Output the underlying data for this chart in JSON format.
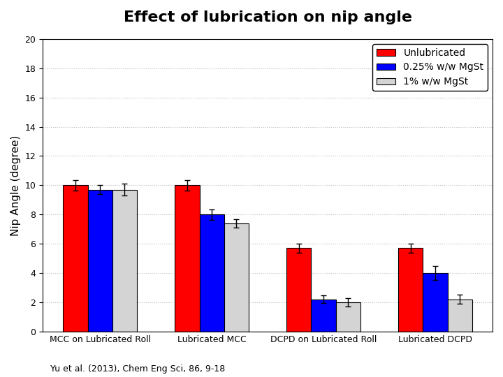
{
  "title": "Effect of lubrication on nip angle",
  "ylabel": "Nip Angle (degree)",
  "citation": "Yu et al. (2013), Chem Eng Sci, 86, 9-18",
  "categories": [
    "MCC on Lubricated Roll",
    "Lubricated MCC",
    "DCPD on Lubricated Roll",
    "Lubricated DCPD"
  ],
  "legend_labels": [
    "Unlubricated",
    "0.25% w/w MgSt",
    "1% w/w MgSt"
  ],
  "bar_colors": [
    "#ff0000",
    "#0000ff",
    "#d4d4d4"
  ],
  "bar_edgecolor": "#000000",
  "values": [
    [
      10.0,
      9.7,
      9.7
    ],
    [
      10.0,
      8.0,
      7.4
    ],
    [
      5.7,
      2.2,
      2.0
    ],
    [
      5.7,
      4.0,
      2.2
    ]
  ],
  "errors": [
    [
      0.35,
      0.3,
      0.4
    ],
    [
      0.35,
      0.35,
      0.3
    ],
    [
      0.3,
      0.25,
      0.3
    ],
    [
      0.3,
      0.5,
      0.3
    ]
  ],
  "ylim": [
    0,
    20
  ],
  "yticks": [
    0,
    2,
    4,
    6,
    8,
    10,
    12,
    14,
    16,
    18,
    20
  ],
  "background_color": "#ffffff",
  "grid_color": "#bbbbbb",
  "title_fontsize": 16,
  "ylabel_fontsize": 11,
  "tick_fontsize": 9,
  "legend_fontsize": 10,
  "citation_fontsize": 9
}
